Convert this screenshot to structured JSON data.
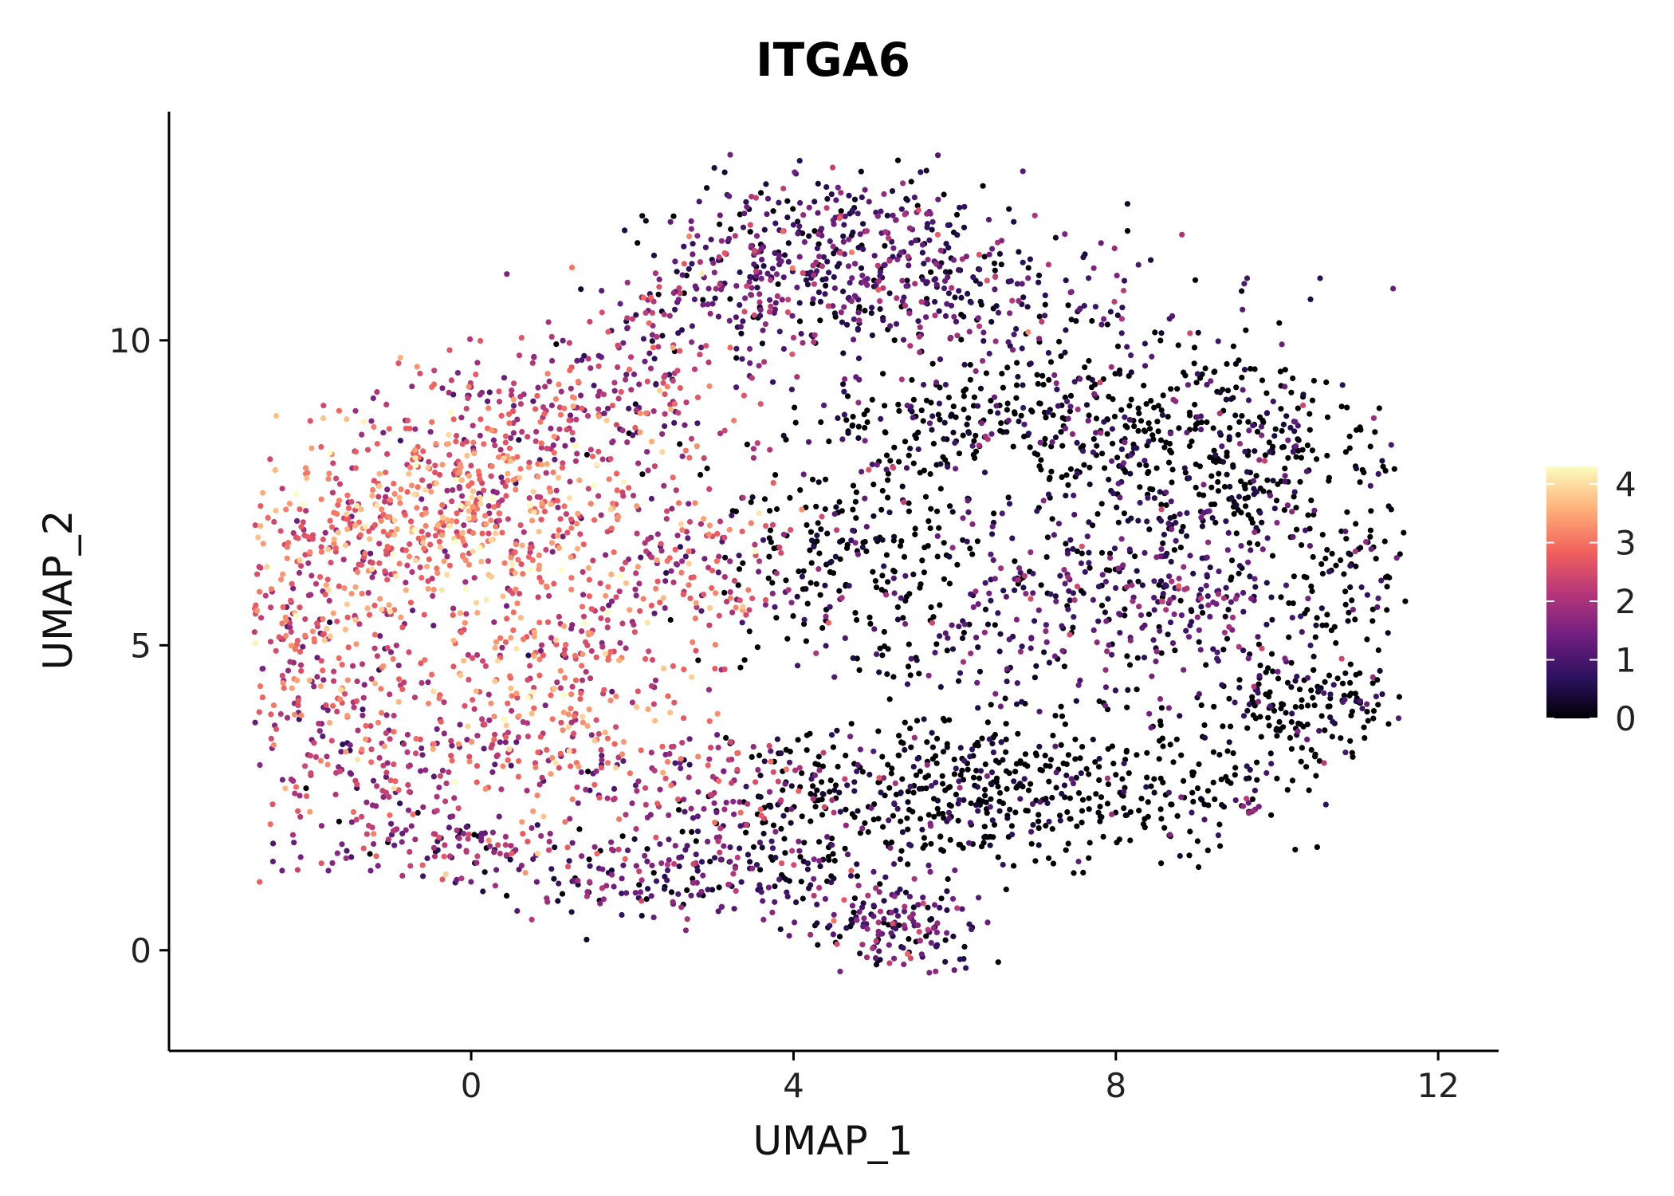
{
  "chart_data": {
    "type": "scatter",
    "title": "ITGA6",
    "xlabel": "UMAP_1",
    "ylabel": "UMAP_2",
    "xlim": [
      -3.75,
      12.75
    ],
    "ylim": [
      -1.65,
      13.75
    ],
    "x_ticks": [
      0,
      4,
      8,
      12
    ],
    "y_ticks": [
      0,
      5,
      10
    ],
    "grid": false,
    "legend": {
      "type": "colorbar",
      "placement": "right",
      "range": [
        0,
        4.3
      ],
      "ticks": [
        0,
        1,
        2,
        3,
        4
      ]
    },
    "colormap": [
      "#000004",
      "#2c115f",
      "#721f81",
      "#b73779",
      "#f1605d",
      "#feb078",
      "#fcfdbf"
    ],
    "series": [
      {
        "description": "regions of cells; each region: center (x,y), spread (sx,sy), approx count, mean expression",
        "regions": [
          {
            "cx": 0.0,
            "cy": 7.3,
            "sx": 1.0,
            "sy": 0.75,
            "n": 420,
            "mean": 3.0
          },
          {
            "cx": -1.2,
            "cy": 6.6,
            "sx": 0.9,
            "sy": 0.8,
            "n": 200,
            "mean": 2.8
          },
          {
            "cx": -2.0,
            "cy": 4.8,
            "sx": 0.55,
            "sy": 1.0,
            "n": 200,
            "mean": 2.5
          },
          {
            "cx": -1.0,
            "cy": 3.0,
            "sx": 0.8,
            "sy": 0.7,
            "n": 180,
            "mean": 2.2
          },
          {
            "cx": -0.3,
            "cy": 1.7,
            "sx": 0.9,
            "sy": 0.3,
            "n": 110,
            "mean": 1.5
          },
          {
            "cx": 0.9,
            "cy": 4.3,
            "sx": 0.8,
            "sy": 1.0,
            "n": 260,
            "mean": 2.7
          },
          {
            "cx": 0.8,
            "cy": 8.9,
            "sx": 1.0,
            "sy": 0.6,
            "n": 170,
            "mean": 2.2
          },
          {
            "cx": 2.3,
            "cy": 9.4,
            "sx": 0.8,
            "sy": 0.7,
            "n": 130,
            "mean": 1.8
          },
          {
            "cx": 2.6,
            "cy": 6.2,
            "sx": 0.8,
            "sy": 0.9,
            "n": 200,
            "mean": 2.4
          },
          {
            "cx": 2.8,
            "cy": 2.8,
            "sx": 0.9,
            "sy": 0.5,
            "n": 160,
            "mean": 2.0
          },
          {
            "cx": 2.8,
            "cy": 1.2,
            "sx": 1.1,
            "sy": 0.35,
            "n": 210,
            "mean": 1.0
          },
          {
            "cx": 5.3,
            "cy": 0.4,
            "sx": 0.55,
            "sy": 0.35,
            "n": 150,
            "mean": 1.1
          },
          {
            "cx": 4.6,
            "cy": 11.6,
            "sx": 1.0,
            "sy": 0.7,
            "n": 330,
            "mean": 1.0
          },
          {
            "cx": 3.5,
            "cy": 10.8,
            "sx": 0.9,
            "sy": 0.6,
            "n": 150,
            "mean": 1.2
          },
          {
            "cx": 6.4,
            "cy": 10.6,
            "sx": 1.3,
            "sy": 0.7,
            "n": 220,
            "mean": 0.9
          },
          {
            "cx": 6.8,
            "cy": 8.6,
            "sx": 1.2,
            "sy": 0.6,
            "n": 280,
            "mean": 0.6
          },
          {
            "cx": 9.4,
            "cy": 8.2,
            "sx": 1.0,
            "sy": 0.9,
            "n": 340,
            "mean": 0.5
          },
          {
            "cx": 4.8,
            "cy": 6.4,
            "sx": 0.9,
            "sy": 1.0,
            "n": 240,
            "mean": 0.4
          },
          {
            "cx": 7.0,
            "cy": 5.5,
            "sx": 1.0,
            "sy": 0.9,
            "n": 230,
            "mean": 0.8
          },
          {
            "cx": 9.0,
            "cy": 6.0,
            "sx": 0.8,
            "sy": 0.9,
            "n": 230,
            "mean": 0.9
          },
          {
            "cx": 5.2,
            "cy": 2.5,
            "sx": 1.2,
            "sy": 0.6,
            "n": 320,
            "mean": 0.4
          },
          {
            "cx": 8.0,
            "cy": 2.6,
            "sx": 1.2,
            "sy": 0.6,
            "n": 280,
            "mean": 0.15
          },
          {
            "cx": 10.3,
            "cy": 4.0,
            "sx": 0.6,
            "sy": 0.5,
            "n": 150,
            "mean": 0.1
          },
          {
            "cx": 10.9,
            "cy": 5.9,
            "sx": 0.55,
            "sy": 0.9,
            "n": 90,
            "mean": 0.1
          },
          {
            "cx": 9.7,
            "cy": 2.4,
            "sx": 0.08,
            "sy": 0.1,
            "n": 8,
            "mean": 1.5
          }
        ]
      }
    ]
  }
}
